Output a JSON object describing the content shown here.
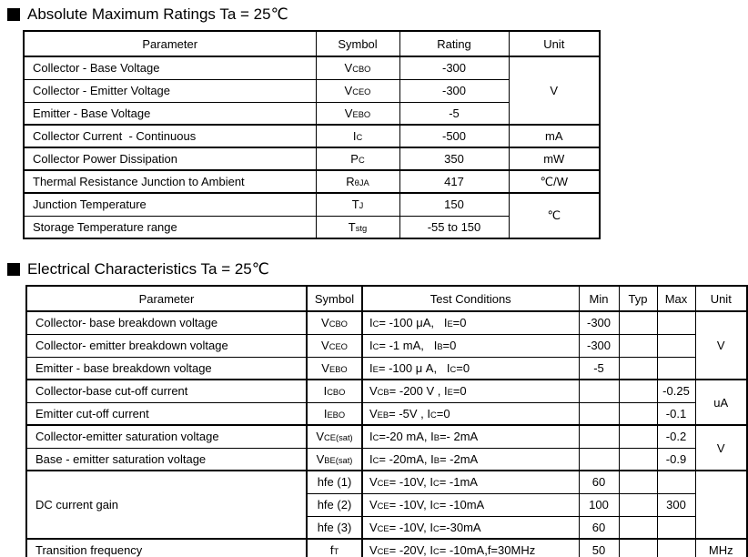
{
  "abs_max": {
    "title": "Absolute Maximum Ratings Ta = 25℃",
    "columns": [
      "Parameter",
      "Symbol",
      "Rating",
      "Unit"
    ],
    "rows": [
      {
        "parameter": "Collector - Base Voltage",
        "symbol": "V~CBO~",
        "rating": "-300"
      },
      {
        "parameter": "Collector - Emitter Voltage",
        "symbol": "V~CEO~",
        "rating": "-300"
      },
      {
        "parameter": "Emitter - Base Voltage",
        "symbol": "V~EBO~",
        "rating": "-5"
      },
      {
        "parameter": "Collector Current  - Continuous",
        "symbol": "I~C~",
        "rating": "-500"
      },
      {
        "parameter": "Collector Power Dissipation",
        "symbol": "P~C~",
        "rating": "350"
      },
      {
        "parameter": "Thermal Resistance Junction to Ambient",
        "symbol": "R~θJA~",
        "rating": "417"
      },
      {
        "parameter": "Junction Temperature",
        "symbol": "T~J~",
        "rating": "150"
      },
      {
        "parameter": "Storage Temperature range",
        "symbol": "T~stg~",
        "rating": "-55 to 150"
      }
    ],
    "unit_groups": [
      {
        "rows": 3,
        "unit": "V"
      },
      {
        "rows": 1,
        "unit": "mA"
      },
      {
        "rows": 1,
        "unit": "mW"
      },
      {
        "rows": 1,
        "unit": "℃/W"
      },
      {
        "rows": 2,
        "unit": "℃"
      }
    ]
  },
  "elec": {
    "title": "Electrical Characteristics Ta = 25℃",
    "columns": [
      "Parameter",
      "Symbol",
      "Test Conditions",
      "Min",
      "Typ",
      "Max",
      "Unit"
    ],
    "rows": [
      {
        "parameter": "Collector- base breakdown voltage",
        "symbol": "V~CBO~",
        "conditions": "I~C~= -100 μA,   I~E~=0",
        "min": "-300",
        "typ": "",
        "max": ""
      },
      {
        "parameter": "Collector- emitter breakdown voltage",
        "symbol": "V~CEO~",
        "conditions": "I~C~= -1 mA,   I~B~=0",
        "min": "-300",
        "typ": "",
        "max": ""
      },
      {
        "parameter": "Emitter - base breakdown voltage",
        "symbol": "V~EBO~",
        "conditions": "I~E~= -100 μ A,   I~C~=0",
        "min": "-5",
        "typ": "",
        "max": ""
      },
      {
        "parameter": "Collector-base cut-off current",
        "symbol": "I~CBO~",
        "conditions": "V~CB~= -200 V , I~E~=0",
        "min": "",
        "typ": "",
        "max": "-0.25"
      },
      {
        "parameter": "Emitter cut-off current",
        "symbol": "I~EBO~",
        "conditions": "V~EB~= -5V , I~C~=0",
        "min": "",
        "typ": "",
        "max": "-0.1"
      },
      {
        "parameter": "Collector-emitter saturation voltage",
        "symbol": "V~CE(sat)~",
        "conditions": "I~C~=-20 mA, I~B~=- 2mA",
        "min": "",
        "typ": "",
        "max": "-0.2"
      },
      {
        "parameter": "Base - emitter saturation voltage",
        "symbol": "V~BE(sat)~",
        "conditions": "I~C~= -20mA, I~B~= -2mA",
        "min": "",
        "typ": "",
        "max": "-0.9"
      },
      {
        "parameter": "DC current gain",
        "param_rowspan": 3,
        "symbol": "hfe (1)",
        "conditions": "V~CE~= -10V, I~C~= -1mA",
        "min": "60",
        "typ": "",
        "max": ""
      },
      {
        "symbol": "hfe (2)",
        "conditions": "V~CE~= -10V, I~C~= -10mA",
        "min": "100",
        "typ": "",
        "max": "300"
      },
      {
        "symbol": "hfe (3)",
        "conditions": "V~CE~= -10V, I~C~=-30mA",
        "min": "60",
        "typ": "",
        "max": ""
      },
      {
        "parameter": "Transition frequency",
        "symbol": "f~T~",
        "conditions": "V~CE~= -20V, I~C~= -10mA,f=30MHz",
        "min": "50",
        "typ": "",
        "max": ""
      }
    ],
    "unit_groups": [
      {
        "rows": 3,
        "unit": "V"
      },
      {
        "rows": 2,
        "unit": "uA"
      },
      {
        "rows": 2,
        "unit": "V"
      },
      {
        "rows": 3,
        "unit": ""
      },
      {
        "rows": 1,
        "unit": "MHz"
      }
    ]
  }
}
